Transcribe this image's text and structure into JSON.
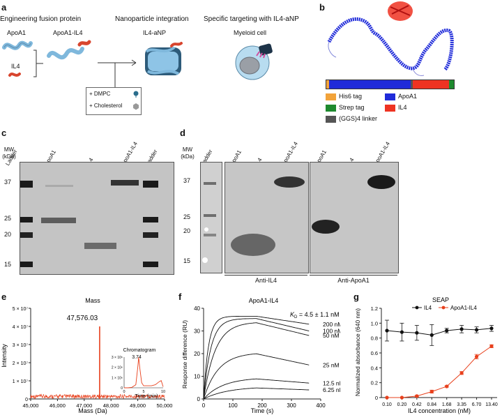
{
  "panel_a": {
    "label": "a",
    "headers": [
      "Engineering fusion protein",
      "Nanoparticle integration",
      "Specific targeting with IL4-aNP"
    ],
    "apoa1": "ApoA1",
    "il4": "IL4",
    "fusion": "ApoA1-IL4",
    "anp": "IL4-aNP",
    "cell": "Myeloid cell",
    "additives": [
      "+ DMPC",
      "+ Cholesterol"
    ],
    "colors": {
      "protein": "#7fb8dc",
      "il4": "#d8452e",
      "cell": "#b8dcf0"
    }
  },
  "panel_b": {
    "label": "b",
    "legend": [
      {
        "name": "His6 tag",
        "color": "#f2a33a"
      },
      {
        "name": "ApoA1",
        "color": "#1f2bd9"
      },
      {
        "name": "Strep tag",
        "color": "#1e8a2e"
      },
      {
        "name": "IL4",
        "color": "#ee3322"
      },
      {
        "name": "(GGS)4 linker",
        "color": "#555555"
      }
    ]
  },
  "panel_c": {
    "label": "c",
    "mw": "MW",
    "kda": "(kDa)",
    "lanes": [
      "Ladder",
      "ApoA1",
      "IL4",
      "ApoA1-IL4",
      "Ladder"
    ],
    "markers": [
      "37",
      "25",
      "20",
      "15"
    ]
  },
  "panel_d": {
    "label": "d",
    "mw": "MW",
    "kda": "(kDa)",
    "ladder": "Ladder",
    "lanes_il4": [
      "ApoA1",
      "IL4",
      "ApoA1-IL4"
    ],
    "lanes_apoa1": [
      "ApoA1",
      "IL4",
      "ApoA1-IL4"
    ],
    "markers": [
      "37",
      "25",
      "20",
      "15"
    ],
    "group_il4": "Anti-IL4",
    "group_apoa1": "Anti-ApoA1"
  },
  "chart_data": [
    {
      "type": "line",
      "panel": "e",
      "title": "Mass",
      "xlabel": "Mass (Da)",
      "ylabel": "Intensity",
      "x_ticks": [
        "45,000",
        "46,000",
        "47,000",
        "48,000",
        "49,000",
        "50,000"
      ],
      "y_ticks": [
        "0",
        "1 × 10⁷",
        "2 × 10⁷",
        "3 × 10⁷",
        "4 × 10⁷",
        "5 × 10⁷"
      ],
      "xlim": [
        45000,
        50000
      ],
      "ylim": [
        0,
        50000000
      ],
      "peak_label": "47,576.03",
      "peak": {
        "x": 47576.03,
        "y": 40000000
      },
      "inset": {
        "title": "Chromatogram",
        "peak_label": "3.74",
        "xlabel": "Time (min)",
        "x_ticks": [
          "0",
          "5",
          "10"
        ],
        "y_ticks": [
          "0",
          "1 × 10⁶",
          "2 × 10⁶",
          "3 × 10⁶"
        ],
        "x": [
          0,
          1,
          2,
          3,
          3.5,
          3.74,
          4,
          4.5,
          5,
          6,
          7,
          8,
          9,
          9.5,
          10
        ],
        "y": [
          0,
          0,
          0.05,
          0.3,
          2.0,
          3.0,
          2.0,
          0.5,
          0.2,
          0.2,
          0.2,
          0.3,
          0.6,
          0.7,
          0.1
        ]
      },
      "color": "#e8401c"
    },
    {
      "type": "line",
      "panel": "f",
      "title": "ApoA1-IL4",
      "xlabel": "Time (s)",
      "ylabel": "Response difference (RU)",
      "xlim": [
        0,
        400
      ],
      "ylim": [
        0,
        40
      ],
      "x_ticks": [
        "0",
        "100",
        "200",
        "300",
        "400"
      ],
      "y_ticks": [
        "0",
        "10",
        "20",
        "30",
        "40"
      ],
      "kd_label": "K",
      "kd_sub": "D",
      "kd_value": " = 4.5 ± 1.1 nM",
      "series": [
        {
          "name": "200 nM",
          "plateau": 36.5,
          "end": 33,
          "k": 0.06
        },
        {
          "name": "100 nM",
          "plateau": 35.5,
          "end": 30,
          "k": 0.04
        },
        {
          "name": "50 nM",
          "plateau": 34,
          "end": 28,
          "k": 0.025
        },
        {
          "name": "25 nM",
          "plateau": 20.5,
          "end": 15,
          "k": 0.02
        },
        {
          "name": "12.5 nM",
          "plateau": 9.5,
          "end": 7,
          "k": 0.015
        },
        {
          "name": "6.25 nM",
          "plateau": 5.5,
          "end": 4,
          "k": 0.012
        }
      ],
      "association_end": 180
    },
    {
      "type": "line",
      "panel": "g",
      "title": "SEAP",
      "xlabel": "IL4 concentration (nM)",
      "ylabel": "Normalized absorbance (640 nm)",
      "ylim": [
        0,
        1.2
      ],
      "y_ticks": [
        "0",
        "0.2",
        "0.4",
        "0.6",
        "0.8",
        "1.0",
        "1.2"
      ],
      "categories": [
        "0.10",
        "0.20",
        "0.42",
        "0.84",
        "1.68",
        "3.35",
        "6.70",
        "13.40"
      ],
      "series": [
        {
          "name": "IL4",
          "color": "#111111",
          "values": [
            0.9,
            0.88,
            0.87,
            0.84,
            0.9,
            0.92,
            0.91,
            0.93
          ],
          "err": [
            0.14,
            0.12,
            0.1,
            0.14,
            0.03,
            0.05,
            0.04,
            0.04
          ]
        },
        {
          "name": "ApoA1-IL4",
          "color": "#e8401c",
          "values": [
            0.0,
            0.0,
            0.02,
            0.08,
            0.15,
            0.33,
            0.55,
            0.69
          ],
          "err": [
            0.0,
            0.0,
            0.01,
            0.02,
            0.01,
            0.02,
            0.03,
            0.02
          ]
        }
      ]
    }
  ]
}
